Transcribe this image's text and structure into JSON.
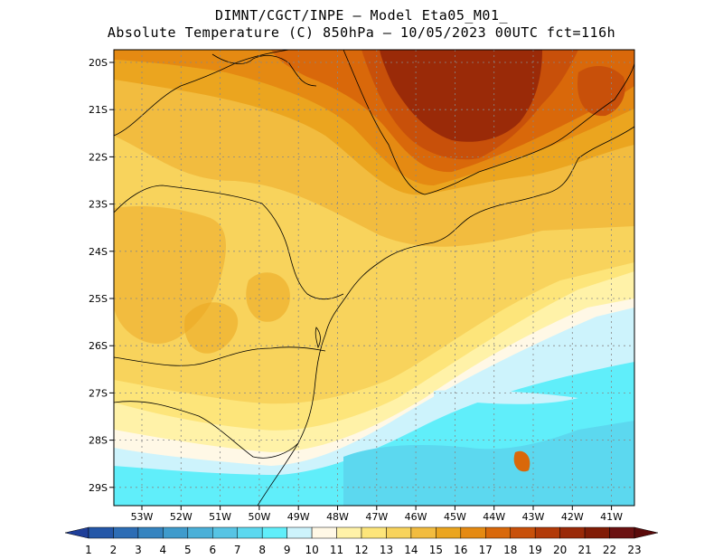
{
  "header": {
    "line1": "DIMNT/CGCT/INPE –  Model Eta05_M01_",
    "line2": "Absolute Temperature (C) 850hPa –  10/05/2023 00UTC fct=116h"
  },
  "map": {
    "lat_labels": [
      "20S",
      "21S",
      "22S",
      "23S",
      "24S",
      "25S",
      "26S",
      "27S",
      "28S",
      "29S"
    ],
    "lon_labels": [
      "53W",
      "52W",
      "51W",
      "50W",
      "49W",
      "48W",
      "47W",
      "46W",
      "45W",
      "44W",
      "43W",
      "42W",
      "41W"
    ]
  },
  "colorbar": {
    "labels": [
      "1",
      "2",
      "3",
      "4",
      "5",
      "6",
      "7",
      "8",
      "9",
      "10",
      "11",
      "12",
      "13",
      "14",
      "15",
      "16",
      "17",
      "18",
      "19",
      "20",
      "21",
      "22",
      "23"
    ],
    "colors": [
      "#1f3f99",
      "#2457a8",
      "#2d6db5",
      "#3584c0",
      "#3f9bcc",
      "#4bb0d8",
      "#57c4e4",
      "#5cd8ef",
      "#60eefa",
      "#cdf3fc",
      "#fff8e6",
      "#fff2a8",
      "#fde57a",
      "#f8d35c",
      "#f2bc3f",
      "#eba51f",
      "#e58a12",
      "#d9680a",
      "#c8500a",
      "#b23a08",
      "#9a2a08",
      "#811c06",
      "#6b1111",
      "#5a0a0a"
    ]
  }
}
